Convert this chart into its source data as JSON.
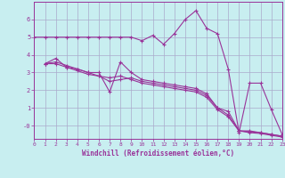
{
  "background_color": "#c8eef0",
  "grid_color": "#aaaacc",
  "line_color": "#993399",
  "line1_x": [
    0,
    1,
    2,
    3,
    4,
    5,
    6,
    7,
    8,
    9,
    10,
    11,
    12,
    13,
    14,
    15,
    16,
    17,
    18,
    19,
    20,
    21,
    22,
    23
  ],
  "line1_y": [
    5.0,
    5.0,
    5.0,
    5.0,
    5.0,
    5.0,
    5.0,
    5.0,
    5.0,
    5.0,
    4.8,
    5.1,
    4.6,
    5.2,
    6.0,
    6.5,
    5.5,
    5.2,
    3.2,
    -0.4,
    2.4,
    2.4,
    0.9,
    -0.5
  ],
  "line2_x": [
    1,
    2,
    3,
    4,
    5,
    6,
    7,
    8,
    9,
    10,
    11,
    12,
    13,
    14,
    15,
    16,
    17,
    18,
    19,
    20,
    21,
    22,
    23
  ],
  "line2_y": [
    3.5,
    3.8,
    3.3,
    3.2,
    3.0,
    3.0,
    1.9,
    3.6,
    3.0,
    2.6,
    2.5,
    2.4,
    2.3,
    2.2,
    2.1,
    1.8,
    1.0,
    0.8,
    -0.3,
    -0.3,
    -0.4,
    -0.5,
    -0.6
  ],
  "line3_x": [
    1,
    2,
    3,
    4,
    5,
    6,
    7,
    8,
    9,
    10,
    11,
    12,
    13,
    14,
    15,
    16,
    17,
    18,
    19,
    20,
    21,
    22,
    23
  ],
  "line3_y": [
    3.5,
    3.6,
    3.4,
    3.2,
    3.0,
    2.8,
    2.5,
    2.6,
    2.7,
    2.5,
    2.4,
    2.3,
    2.2,
    2.1,
    2.0,
    1.7,
    1.0,
    0.6,
    -0.3,
    -0.35,
    -0.4,
    -0.5,
    -0.6
  ],
  "line4_x": [
    1,
    2,
    3,
    4,
    5,
    6,
    7,
    8,
    9,
    10,
    11,
    12,
    13,
    14,
    15,
    16,
    17,
    18,
    19,
    20,
    21,
    22,
    23
  ],
  "line4_y": [
    3.5,
    3.5,
    3.3,
    3.1,
    2.9,
    2.8,
    2.7,
    2.8,
    2.6,
    2.4,
    2.3,
    2.2,
    2.1,
    2.0,
    1.9,
    1.6,
    0.9,
    0.5,
    -0.3,
    -0.4,
    -0.45,
    -0.55,
    -0.65
  ],
  "xlim": [
    0,
    23
  ],
  "ylim": [
    -0.75,
    7.0
  ],
  "yticks": [
    0,
    1,
    2,
    3,
    4,
    5,
    6
  ],
  "ytick_labels": [
    "-0",
    "1",
    "2",
    "3",
    "4",
    "5",
    "6"
  ],
  "xticks": [
    0,
    1,
    2,
    3,
    4,
    5,
    6,
    7,
    8,
    9,
    10,
    11,
    12,
    13,
    14,
    15,
    16,
    17,
    18,
    19,
    20,
    21,
    22,
    23
  ],
  "xlabel": "Windchill (Refroidissement éolien,°C)",
  "xlabel_color": "#993399",
  "marker": "+",
  "markersize": 3,
  "linewidth": 0.8,
  "tick_fontsize": 4.5,
  "xlabel_fontsize": 5.5
}
